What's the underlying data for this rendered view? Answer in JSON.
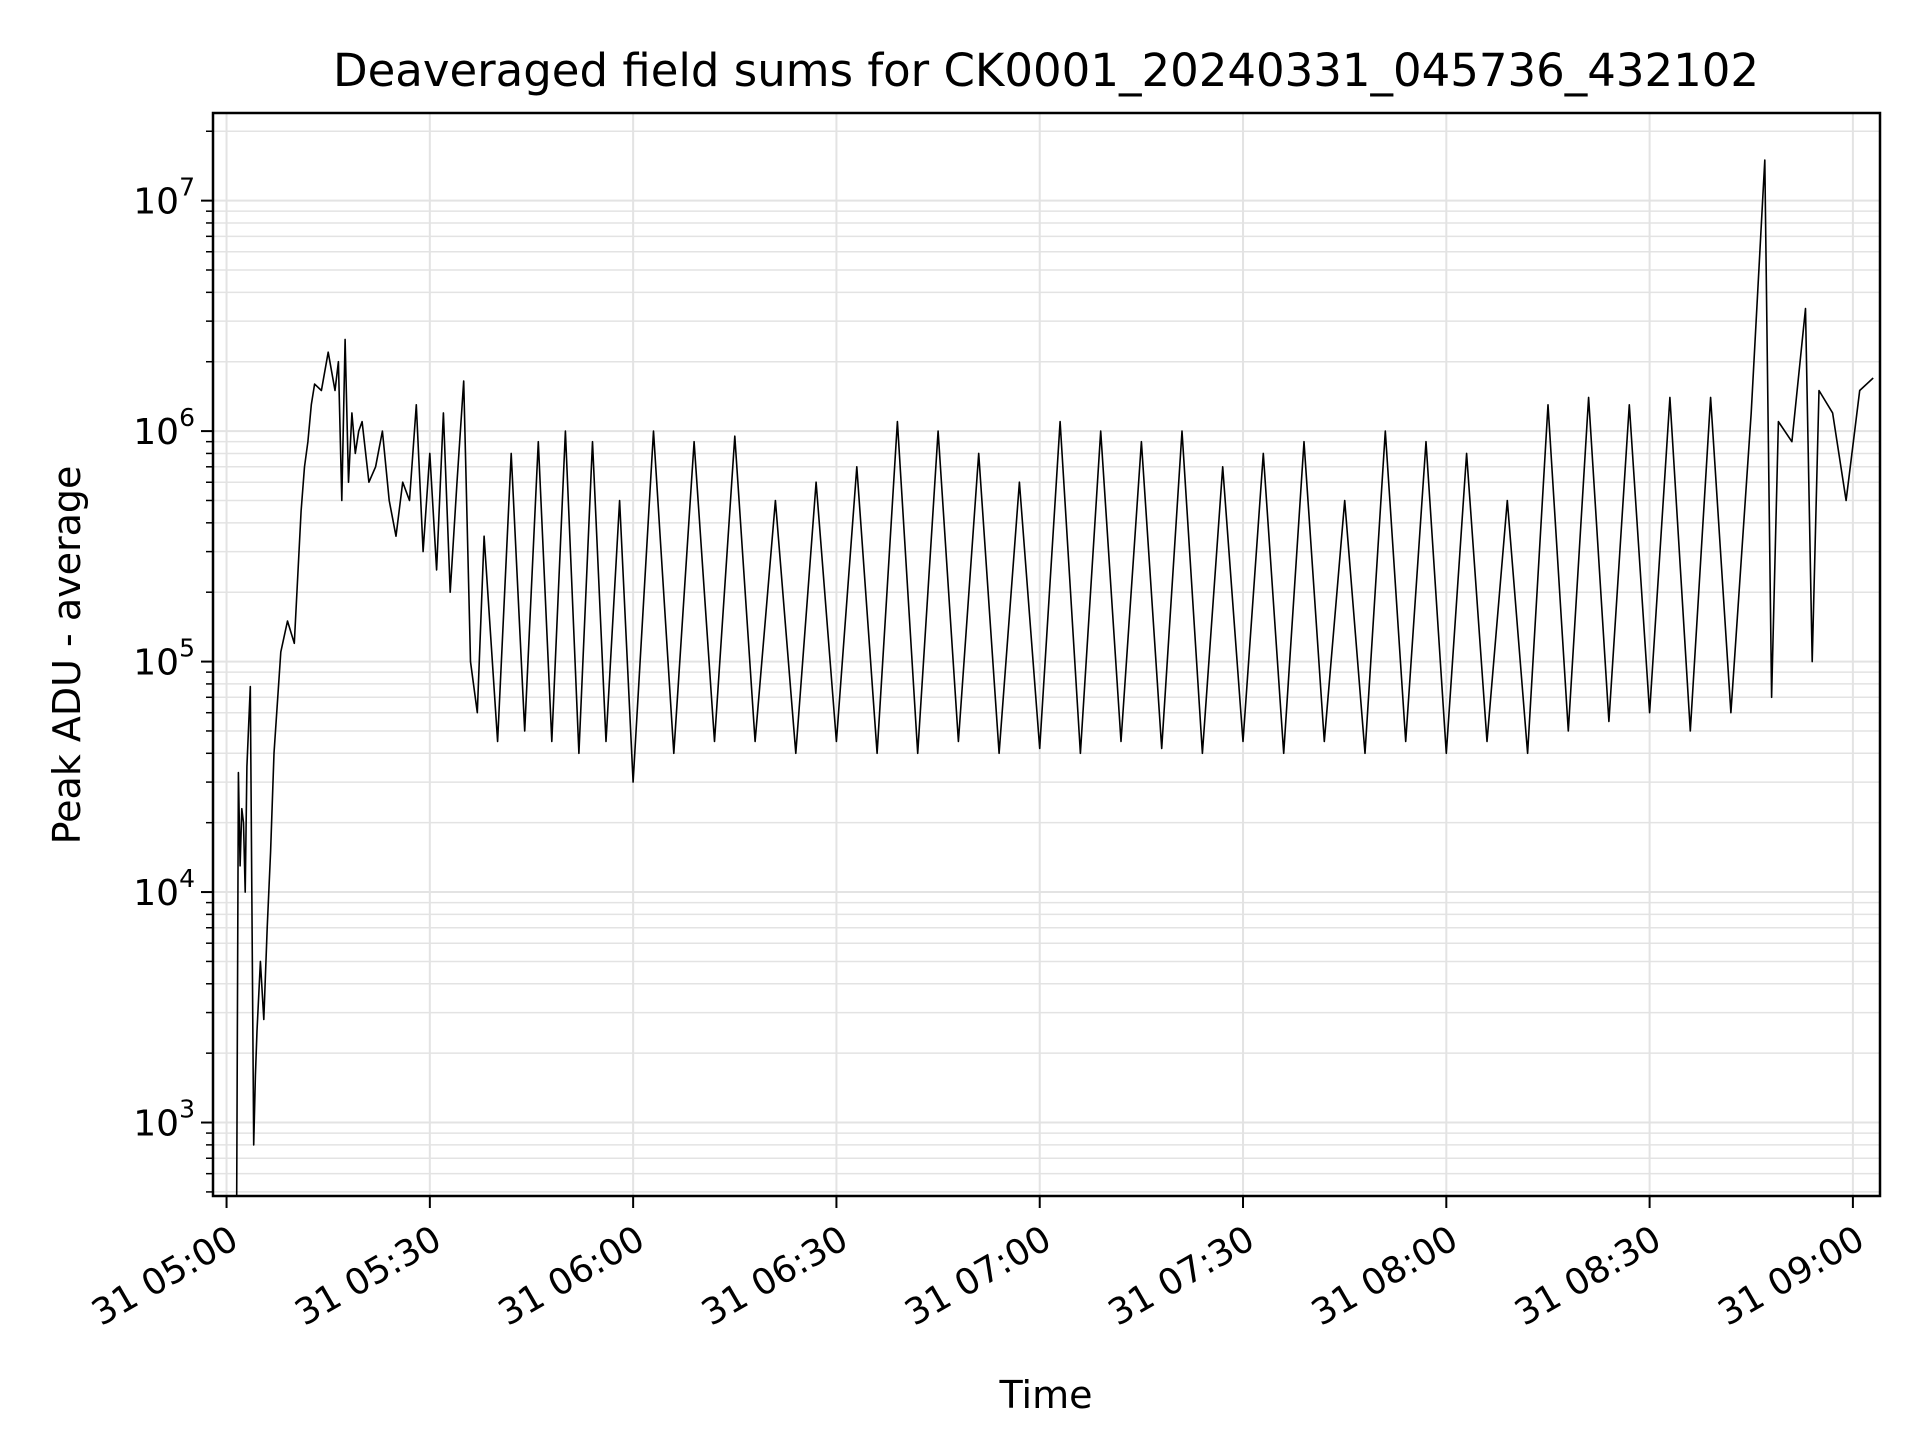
{
  "chart_data": {
    "type": "line",
    "title": "Deaveraged field sums for CK0001_20240331_045736_432102",
    "xlabel": "Time",
    "ylabel": "Peak ADU - average",
    "yscale": "log",
    "ylim": [
      480,
      24000000
    ],
    "xlim": [
      "31 04:58:00",
      "31 09:04:00"
    ],
    "x_ticks": [
      "31 05:00",
      "31 05:30",
      "31 06:00",
      "31 06:30",
      "31 07:00",
      "31 07:30",
      "31 08:00",
      "31 08:30",
      "31 09:00"
    ],
    "y_ticks": [
      {
        "base": "10",
        "exp": "3",
        "value": 1000
      },
      {
        "base": "10",
        "exp": "4",
        "value": 10000
      },
      {
        "base": "10",
        "exp": "5",
        "value": 100000
      },
      {
        "base": "10",
        "exp": "6",
        "value": 1000000
      },
      {
        "base": "10",
        "exp": "7",
        "value": 10000000
      }
    ],
    "grid": true,
    "line_color": "#000000",
    "grid_color": "#e3e3e3",
    "series": [
      {
        "x": [
          "31 05:01:30",
          "31 05:01:45",
          "31 05:02:00",
          "31 05:02:15",
          "31 05:02:30",
          "31 05:02:45",
          "31 05:03:00",
          "31 05:03:30",
          "31 05:04:00",
          "31 05:04:15",
          "31 05:04:30",
          "31 05:05:00",
          "31 05:05:30",
          "31 05:06:00",
          "31 05:06:30",
          "31 05:07:00",
          "31 05:08:00",
          "31 05:09:00",
          "31 05:10:00",
          "31 05:11:00",
          "31 05:11:30",
          "31 05:12:00",
          "31 05:12:30",
          "31 05:13:00",
          "31 05:14:00",
          "31 05:15:00",
          "31 05:16:00",
          "31 05:16:30",
          "31 05:17:00",
          "31 05:17:30",
          "31 05:18:00",
          "31 05:18:30",
          "31 05:19:00",
          "31 05:19:30",
          "31 05:20:00",
          "31 05:21:00",
          "31 05:22:00",
          "31 05:23:00",
          "31 05:24:00",
          "31 05:25:00",
          "31 05:26:00",
          "31 05:27:00",
          "31 05:28:00",
          "31 05:29:00",
          "31 05:30:00",
          "31 05:31:00",
          "31 05:32:00",
          "31 05:33:00",
          "31 05:34:00",
          "31 05:35:00",
          "31 05:36:00",
          "31 05:37:00",
          "31 05:38:00",
          "31 05:40:00",
          "31 05:42:00",
          "31 05:44:00",
          "31 05:46:00",
          "31 05:48:00",
          "31 05:50:00",
          "31 05:52:00",
          "31 05:54:00",
          "31 05:56:00",
          "31 05:58:00",
          "31 06:00:00",
          "31 06:03:00",
          "31 06:06:00",
          "31 06:09:00",
          "31 06:12:00",
          "31 06:15:00",
          "31 06:18:00",
          "31 06:21:00",
          "31 06:24:00",
          "31 06:27:00",
          "31 06:30:00",
          "31 06:33:00",
          "31 06:36:00",
          "31 06:39:00",
          "31 06:42:00",
          "31 06:45:00",
          "31 06:48:00",
          "31 06:51:00",
          "31 06:54:00",
          "31 06:57:00",
          "31 07:00:00",
          "31 07:03:00",
          "31 07:06:00",
          "31 07:09:00",
          "31 07:12:00",
          "31 07:15:00",
          "31 07:18:00",
          "31 07:21:00",
          "31 07:24:00",
          "31 07:27:00",
          "31 07:30:00",
          "31 07:33:00",
          "31 07:36:00",
          "31 07:39:00",
          "31 07:42:00",
          "31 07:45:00",
          "31 07:48:00",
          "31 07:51:00",
          "31 07:54:00",
          "31 07:57:00",
          "31 08:00:00",
          "31 08:03:00",
          "31 08:06:00",
          "31 08:09:00",
          "31 08:12:00",
          "31 08:15:00",
          "31 08:18:00",
          "31 08:21:00",
          "31 08:24:00",
          "31 08:27:00",
          "31 08:30:00",
          "31 08:33:00",
          "31 08:36:00",
          "31 08:39:00",
          "31 08:42:00",
          "31 08:45:00",
          "31 08:47:00",
          "31 08:48:00",
          "31 08:49:00",
          "31 08:51:00",
          "31 08:53:00",
          "31 08:54:00",
          "31 08:55:00",
          "31 08:57:00",
          "31 08:59:00",
          "31 09:01:00",
          "31 09:03:00"
        ],
        "y": [
          480,
          33000,
          13000,
          23000,
          20000,
          10000,
          35000,
          78000,
          800,
          1600,
          2500,
          5000,
          2800,
          7000,
          15000,
          40000,
          110000,
          150000,
          120000,
          450000,
          700000,
          900000,
          1300000,
          1600000,
          1500000,
          2200000,
          1500000,
          2000000,
          500000,
          2500000,
          600000,
          1200000,
          800000,
          1000000,
          1100000,
          600000,
          700000,
          1000000,
          500000,
          350000,
          600000,
          500000,
          1300000,
          300000,
          800000,
          250000,
          1200000,
          200000,
          600000,
          1650000,
          100000,
          60000,
          350000,
          45000,
          800000,
          50000,
          900000,
          45000,
          1000000,
          40000,
          900000,
          45000,
          500000,
          30000,
          1000000,
          40000,
          900000,
          45000,
          950000,
          45000,
          500000,
          40000,
          600000,
          45000,
          700000,
          40000,
          1100000,
          40000,
          1000000,
          45000,
          800000,
          40000,
          600000,
          42000,
          1100000,
          40000,
          1000000,
          45000,
          900000,
          42000,
          1000000,
          40000,
          700000,
          45000,
          800000,
          40000,
          900000,
          45000,
          500000,
          40000,
          1000000,
          45000,
          900000,
          40000,
          800000,
          45000,
          500000,
          40000,
          1300000,
          50000,
          1400000,
          55000,
          1300000,
          60000,
          1400000,
          50000,
          1400000,
          60000,
          1200000,
          15000000,
          70000,
          1100000,
          900000,
          3400000,
          100000,
          1500000,
          1200000,
          500000,
          1500000,
          1700000
        ]
      }
    ]
  }
}
